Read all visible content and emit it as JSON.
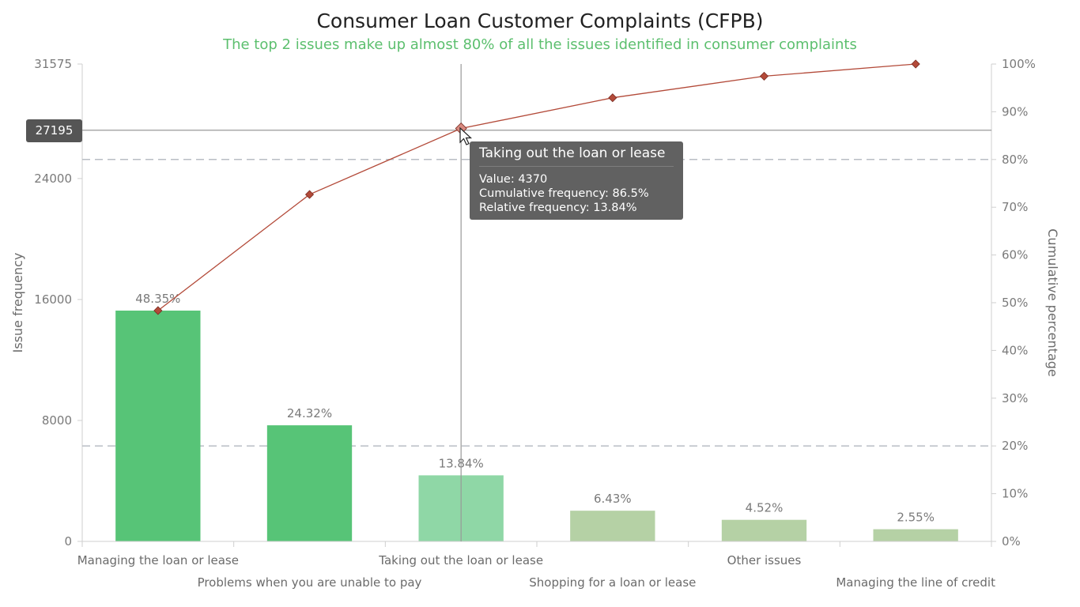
{
  "title": "Consumer Loan Customer Complaints (CFPB)",
  "subtitle": "The top 2 issues make up almost 80% of all the issues identified in consumer complaints",
  "colors": {
    "subtitle": "#5cbf6e",
    "bar_strong": "#57c477",
    "bar_hover": "#8fd7a6",
    "bar_light": "#b5d1a5",
    "line": "#b34a39",
    "marker": "#b34a39",
    "reference_line": "#b9bec4",
    "crosshair": "#999999"
  },
  "chart_data": {
    "type": "bar",
    "categories": [
      "Managing the loan or lease",
      "Problems when you are unable to pay",
      "Taking out the loan or lease",
      "Shopping for a loan or lease",
      "Other issues",
      "Managing the line of credit"
    ],
    "series": [
      {
        "type": "bar",
        "axis": "left",
        "values": [
          15266,
          7679,
          4370,
          2030,
          1427,
          805
        ],
        "labels": [
          "48.35%",
          "24.32%",
          "13.84%",
          "6.43%",
          "4.52%",
          "2.55%"
        ],
        "color_levels": [
          "strong",
          "strong",
          "hover",
          "light",
          "light",
          "light"
        ]
      },
      {
        "type": "line",
        "axis": "right",
        "values": [
          48.35,
          72.67,
          86.5,
          92.93,
          97.45,
          100
        ]
      }
    ],
    "y_left": {
      "label": "Issue frequency",
      "min": 0,
      "max": 31575,
      "ticks": [
        0,
        8000,
        16000,
        24000,
        31575
      ]
    },
    "y_right": {
      "label": "Cumulative percentage",
      "min": 0,
      "max": 100,
      "ticks": [
        0,
        10,
        20,
        30,
        40,
        50,
        60,
        70,
        80,
        90,
        100
      ],
      "tick_suffix": "%"
    },
    "reference_lines_right": [
      20,
      80
    ],
    "crosshair": {
      "category_index": 2,
      "y_value": 27195,
      "label": "27195"
    },
    "tooltip": {
      "title": "Taking out the loan or lease",
      "rows": [
        "Value: 4370",
        "Cumulative frequency: 86.5%",
        "Relative frequency: 13.84%"
      ]
    }
  }
}
